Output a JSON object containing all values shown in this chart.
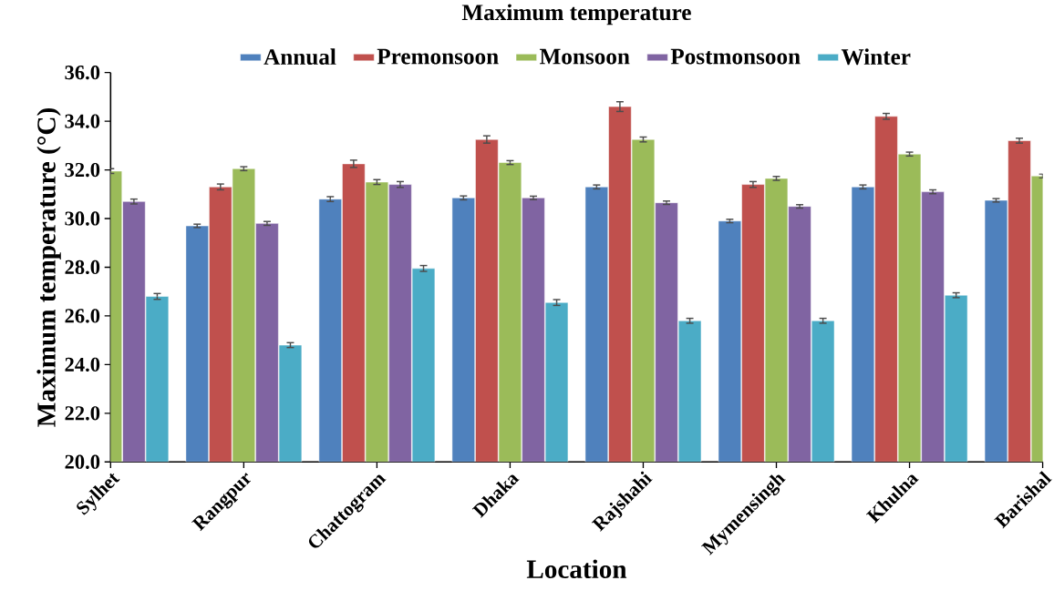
{
  "chart_data": {
    "type": "bar",
    "title": "Maximum temperature",
    "xlabel": "Location",
    "ylabel": "Maximum temperature (°C)",
    "categories": [
      "Sylhet",
      "Rangpur",
      "Chattogram",
      "Dhaka",
      "Rajshahi",
      "Mymensingh",
      "Khulna",
      "Barishal"
    ],
    "ylim": [
      20,
      36
    ],
    "yticks": [
      {
        "value": 20,
        "label": "20.0"
      },
      {
        "value": 22,
        "label": "22.0"
      },
      {
        "value": 24,
        "label": "24.0"
      },
      {
        "value": 26,
        "label": "26.0"
      },
      {
        "value": 28,
        "label": "28.0"
      },
      {
        "value": 30,
        "label": "30.0"
      },
      {
        "value": 32,
        "label": "32.0"
      },
      {
        "value": 34,
        "label": "34.0"
      },
      {
        "value": 36,
        "label": "36.0"
      }
    ],
    "legend": "top",
    "grid": false,
    "series": [
      {
        "name": "Annual",
        "color": "#4f81bd",
        "values": [
          null,
          29.7,
          30.8,
          30.85,
          31.3,
          29.9,
          31.3,
          30.75
        ],
        "errors": [
          null,
          0.07,
          0.1,
          0.08,
          0.08,
          0.07,
          0.08,
          0.07
        ]
      },
      {
        "name": "Premonsoon",
        "color": "#c0504d",
        "values": [
          null,
          31.3,
          32.25,
          33.25,
          34.6,
          31.4,
          34.2,
          33.2
        ],
        "errors": [
          null,
          0.12,
          0.15,
          0.15,
          0.2,
          0.12,
          0.12,
          0.1
        ]
      },
      {
        "name": "Monsoon",
        "color": "#9bbb59",
        "values": [
          31.95,
          32.05,
          31.5,
          32.3,
          33.25,
          31.65,
          32.65,
          31.75
        ],
        "errors": [
          0.1,
          0.08,
          0.1,
          0.08,
          0.1,
          0.08,
          0.08,
          0.08
        ]
      },
      {
        "name": "Postmonsoon",
        "color": "#8064a2",
        "values": [
          30.7,
          29.8,
          31.4,
          30.85,
          30.65,
          30.5,
          31.1,
          null
        ],
        "errors": [
          0.1,
          0.08,
          0.12,
          0.07,
          0.07,
          0.07,
          0.08,
          null
        ]
      },
      {
        "name": "Winter",
        "color": "#4bacc6",
        "values": [
          26.8,
          24.8,
          27.95,
          26.55,
          25.8,
          25.8,
          26.85,
          null
        ],
        "errors": [
          0.12,
          0.1,
          0.12,
          0.12,
          0.1,
          0.1,
          0.1,
          null
        ]
      }
    ]
  }
}
